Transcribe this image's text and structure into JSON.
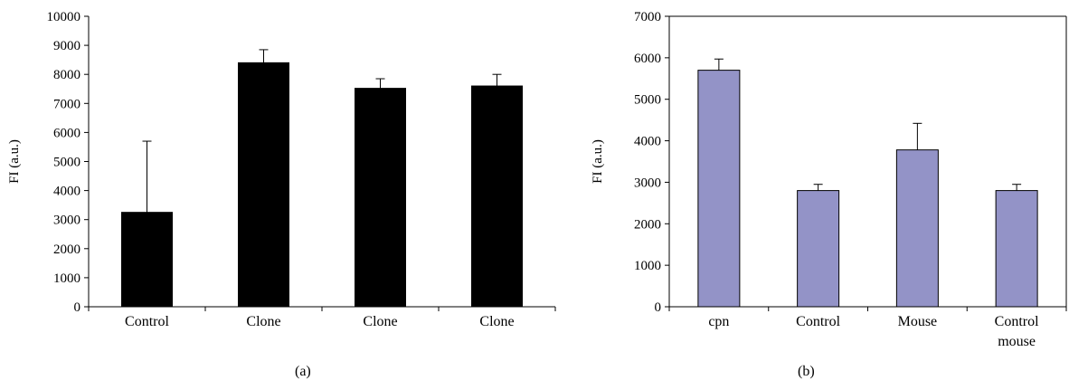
{
  "chart_data": [
    {
      "type": "bar",
      "panel_label": "(a)",
      "ylabel": "FI (a.u.)",
      "xlabel": "",
      "ylim": [
        0,
        10000
      ],
      "yticks": [
        "0",
        "1000",
        "2000",
        "3000",
        "4000",
        "5000",
        "6000",
        "7000",
        "8000",
        "9000",
        "10000"
      ],
      "categories": [
        [
          "Control"
        ],
        [
          "Clone"
        ],
        [
          "Clone"
        ],
        [
          "Clone"
        ]
      ],
      "values": [
        3250,
        8400,
        7520,
        7600
      ],
      "errors": [
        2450,
        450,
        330,
        400
      ],
      "bar_color": "#000000",
      "grid": false
    },
    {
      "type": "bar",
      "panel_label": "(b)",
      "ylabel": "FI (a.u.)",
      "xlabel": "",
      "ylim": [
        0,
        7000
      ],
      "yticks": [
        "0",
        "1000",
        "2000",
        "3000",
        "4000",
        "5000",
        "6000",
        "7000"
      ],
      "categories": [
        [
          "cpn"
        ],
        [
          "Control"
        ],
        [
          "Mouse"
        ],
        [
          "Control",
          "mouse"
        ]
      ],
      "values": [
        5700,
        2800,
        3780,
        2800
      ],
      "errors": [
        270,
        150,
        640,
        150
      ],
      "bar_color": "#9393c7",
      "grid": false
    }
  ]
}
